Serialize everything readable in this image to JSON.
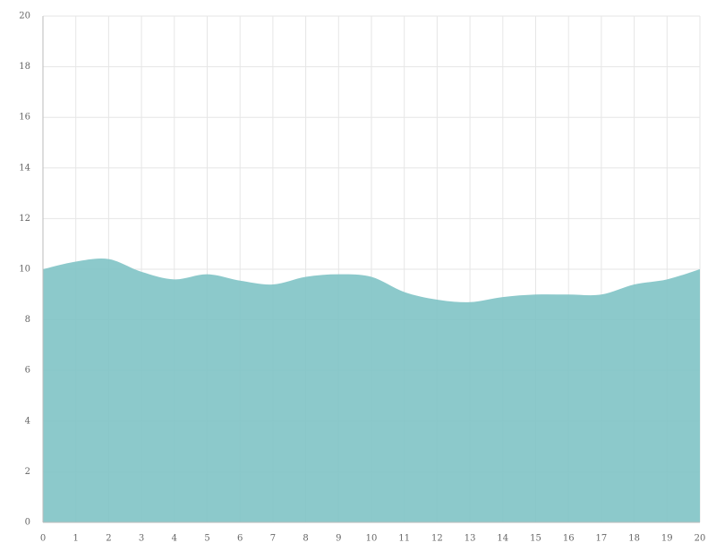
{
  "chart_data": {
    "type": "area",
    "x": [
      0,
      1,
      2,
      3,
      4,
      5,
      6,
      7,
      8,
      9,
      10,
      11,
      12,
      13,
      14,
      15,
      16,
      17,
      18,
      19,
      20
    ],
    "values": [
      10.0,
      10.3,
      10.4,
      9.9,
      9.6,
      9.8,
      9.55,
      9.4,
      9.7,
      9.8,
      9.7,
      9.1,
      8.8,
      8.7,
      8.9,
      9.0,
      9.0,
      9.0,
      9.4,
      9.6,
      10.0
    ],
    "color": "#7fc3c5",
    "xlim": [
      0,
      20
    ],
    "xticks": [
      0,
      1,
      2,
      3,
      4,
      5,
      6,
      7,
      8,
      9,
      10,
      11,
      12,
      13,
      14,
      15,
      16,
      17,
      18,
      19,
      20
    ],
    "ylim": [
      0,
      20
    ],
    "yticks": [
      0,
      2,
      4,
      6,
      8,
      10,
      12,
      14,
      16,
      18,
      20
    ],
    "grid": true
  }
}
